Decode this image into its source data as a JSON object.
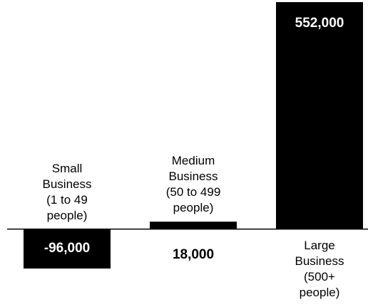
{
  "chart_data": {
    "type": "bar",
    "categories": [
      "Small\nBusiness\n(1 to 49\npeople)",
      "Medium\nBusiness\n(50 to 499\npeople)",
      "Large\nBusiness\n(500+\npeople)"
    ],
    "values": [
      -96000,
      18000,
      552000
    ],
    "value_labels": [
      "-96,000",
      "18,000",
      "552,000"
    ],
    "ylim": [
      -96000,
      552000
    ],
    "grid": false,
    "bar_color": "#000000",
    "label_on_bar_color": "#ffffff",
    "label_off_bar_color": "#000000"
  }
}
